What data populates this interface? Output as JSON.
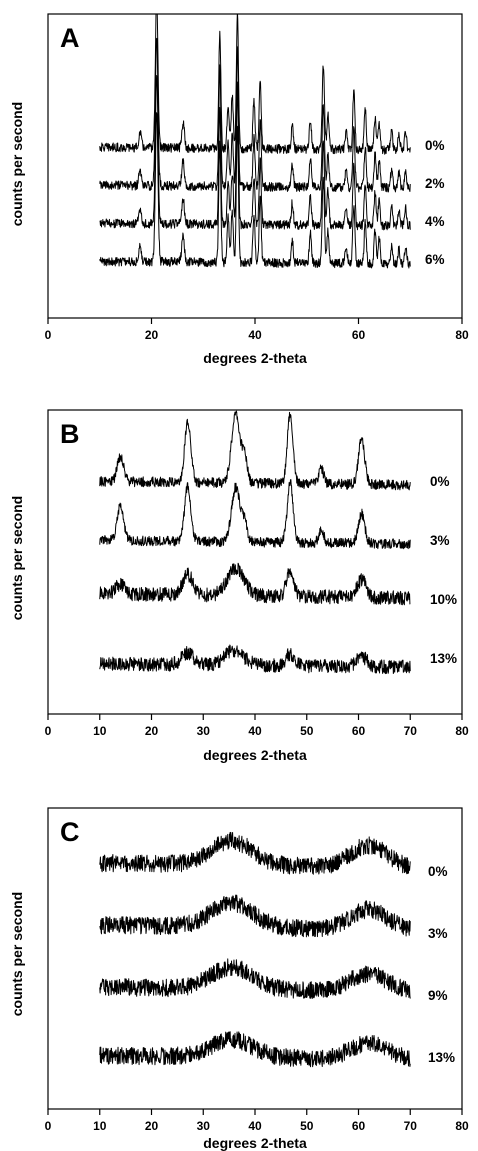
{
  "chart_data": [
    {
      "type": "line",
      "panel_label": "A",
      "xlabel": "degrees 2-theta",
      "ylabel": "counts per second",
      "xlim": [
        0,
        80
      ],
      "x_ticks": [
        "0",
        "20",
        "40",
        "60",
        "80"
      ],
      "x_range_of_data": [
        10,
        70
      ],
      "y_ticks_shown": false,
      "legend_position": "right",
      "series": [
        {
          "name": "0%",
          "baseline": 0.12,
          "noise": 0.03,
          "peaks": [
            [
              17.8,
              0.1,
              0.25
            ],
            [
              21.0,
              1.0,
              0.25
            ],
            [
              26.1,
              0.17,
              0.25
            ],
            [
              33.2,
              0.78,
              0.2
            ],
            [
              34.8,
              0.3,
              0.2
            ],
            [
              35.6,
              0.35,
              0.2
            ],
            [
              36.6,
              0.92,
              0.2
            ],
            [
              39.8,
              0.32,
              0.2
            ],
            [
              41.0,
              0.44,
              0.2
            ],
            [
              47.2,
              0.15,
              0.2
            ],
            [
              50.7,
              0.2,
              0.2
            ],
            [
              53.2,
              0.55,
              0.22
            ],
            [
              54.1,
              0.23,
              0.2
            ],
            [
              57.6,
              0.12,
              0.2
            ],
            [
              59.1,
              0.4,
              0.2
            ],
            [
              61.3,
              0.27,
              0.2
            ],
            [
              63.2,
              0.22,
              0.2
            ],
            [
              64.0,
              0.17,
              0.2
            ],
            [
              66.4,
              0.12,
              0.2
            ],
            [
              67.8,
              0.1,
              0.2
            ],
            [
              69.1,
              0.12,
              0.2
            ]
          ]
        },
        {
          "name": "2%",
          "baseline": 0.12,
          "noise": 0.03,
          "peaks": [
            [
              17.8,
              0.1,
              0.25
            ],
            [
              21.0,
              1.0,
              0.25
            ],
            [
              26.1,
              0.17,
              0.25
            ],
            [
              33.2,
              0.78,
              0.2
            ],
            [
              34.8,
              0.3,
              0.2
            ],
            [
              35.6,
              0.35,
              0.2
            ],
            [
              36.6,
              0.92,
              0.2
            ],
            [
              39.8,
              0.32,
              0.2
            ],
            [
              41.0,
              0.44,
              0.2
            ],
            [
              47.2,
              0.15,
              0.2
            ],
            [
              50.7,
              0.2,
              0.2
            ],
            [
              53.2,
              0.55,
              0.22
            ],
            [
              54.1,
              0.23,
              0.2
            ],
            [
              57.6,
              0.12,
              0.2
            ],
            [
              59.1,
              0.4,
              0.2
            ],
            [
              61.3,
              0.27,
              0.2
            ],
            [
              63.2,
              0.22,
              0.2
            ],
            [
              64.0,
              0.17,
              0.2
            ],
            [
              66.4,
              0.12,
              0.2
            ],
            [
              67.8,
              0.1,
              0.2
            ],
            [
              69.1,
              0.12,
              0.2
            ]
          ]
        },
        {
          "name": "4%",
          "baseline": 0.12,
          "noise": 0.03,
          "peaks": [
            [
              17.8,
              0.1,
              0.25
            ],
            [
              21.0,
              1.0,
              0.25
            ],
            [
              26.1,
              0.17,
              0.25
            ],
            [
              33.2,
              0.78,
              0.2
            ],
            [
              34.8,
              0.3,
              0.2
            ],
            [
              35.6,
              0.35,
              0.2
            ],
            [
              36.6,
              0.92,
              0.2
            ],
            [
              39.8,
              0.32,
              0.2
            ],
            [
              41.0,
              0.44,
              0.2
            ],
            [
              47.2,
              0.15,
              0.2
            ],
            [
              50.7,
              0.2,
              0.2
            ],
            [
              53.2,
              0.55,
              0.22
            ],
            [
              54.1,
              0.23,
              0.2
            ],
            [
              57.6,
              0.12,
              0.2
            ],
            [
              59.1,
              0.4,
              0.2
            ],
            [
              61.3,
              0.27,
              0.2
            ],
            [
              63.2,
              0.22,
              0.2
            ],
            [
              64.0,
              0.17,
              0.2
            ],
            [
              66.4,
              0.12,
              0.2
            ],
            [
              67.8,
              0.1,
              0.2
            ],
            [
              69.1,
              0.12,
              0.2
            ]
          ]
        },
        {
          "name": "6%",
          "baseline": 0.12,
          "noise": 0.03,
          "peaks": [
            [
              17.8,
              0.1,
              0.25
            ],
            [
              21.0,
              1.0,
              0.25
            ],
            [
              26.1,
              0.17,
              0.25
            ],
            [
              33.2,
              0.78,
              0.2
            ],
            [
              34.8,
              0.3,
              0.2
            ],
            [
              35.6,
              0.35,
              0.2
            ],
            [
              36.6,
              0.92,
              0.2
            ],
            [
              39.8,
              0.32,
              0.2
            ],
            [
              41.0,
              0.44,
              0.2
            ],
            [
              47.2,
              0.15,
              0.2
            ],
            [
              50.7,
              0.2,
              0.2
            ],
            [
              53.2,
              0.55,
              0.22
            ],
            [
              54.1,
              0.23,
              0.2
            ],
            [
              57.6,
              0.12,
              0.2
            ],
            [
              59.1,
              0.4,
              0.2
            ],
            [
              61.3,
              0.27,
              0.2
            ],
            [
              63.2,
              0.22,
              0.2
            ],
            [
              64.0,
              0.17,
              0.2
            ],
            [
              66.4,
              0.12,
              0.2
            ],
            [
              67.8,
              0.1,
              0.2
            ],
            [
              69.1,
              0.12,
              0.2
            ]
          ]
        }
      ]
    },
    {
      "type": "line",
      "panel_label": "B",
      "xlabel": "degrees 2-theta",
      "ylabel": "counts per second",
      "xlim": [
        0,
        80
      ],
      "x_ticks": [
        "0",
        "10",
        "20",
        "30",
        "40",
        "50",
        "60",
        "70",
        "80"
      ],
      "x_range_of_data": [
        10,
        70
      ],
      "y_ticks_shown": false,
      "legend_position": "right",
      "series": [
        {
          "name": "0%",
          "baseline": 0.25,
          "noise": 0.05,
          "peaks": [
            [
              14.0,
              0.25,
              0.6
            ],
            [
              27.0,
              0.6,
              0.6
            ],
            [
              36.3,
              0.7,
              0.8
            ],
            [
              38.0,
              0.25,
              0.5
            ],
            [
              46.8,
              0.7,
              0.55
            ],
            [
              52.8,
              0.15,
              0.5
            ],
            [
              60.6,
              0.45,
              0.6
            ]
          ]
        },
        {
          "name": "3%",
          "baseline": 0.25,
          "noise": 0.05,
          "peaks": [
            [
              14.0,
              0.35,
              0.6
            ],
            [
              27.0,
              0.55,
              0.6
            ],
            [
              36.3,
              0.55,
              0.8
            ],
            [
              38.0,
              0.2,
              0.5
            ],
            [
              46.8,
              0.6,
              0.55
            ],
            [
              52.8,
              0.12,
              0.5
            ],
            [
              60.6,
              0.3,
              0.6
            ]
          ]
        },
        {
          "name": "10%",
          "baseline": 0.3,
          "noise": 0.07,
          "peaks": [
            [
              14.0,
              0.1,
              0.8
            ],
            [
              27.0,
              0.2,
              1.0
            ],
            [
              36.3,
              0.28,
              1.6
            ],
            [
              46.8,
              0.26,
              0.7
            ],
            [
              60.6,
              0.18,
              0.8
            ]
          ]
        },
        {
          "name": "13%",
          "baseline": 0.2,
          "noise": 0.07,
          "peaks": [
            [
              27.0,
              0.12,
              1.2
            ],
            [
              36.0,
              0.15,
              1.8
            ],
            [
              46.8,
              0.12,
              0.8
            ],
            [
              60.6,
              0.1,
              1.0
            ]
          ]
        }
      ]
    },
    {
      "type": "line",
      "panel_label": "C",
      "xlabel": "degrees 2-theta",
      "ylabel": "counts per second",
      "xlim": [
        0,
        80
      ],
      "x_ticks": [
        "0",
        "10",
        "20",
        "30",
        "40",
        "50",
        "60",
        "70",
        "80"
      ],
      "x_range_of_data": [
        10,
        70
      ],
      "y_ticks_shown": false,
      "legend_position": "right",
      "series": [
        {
          "name": "0%",
          "baseline": 0.3,
          "noise": 0.08,
          "peaks": [
            [
              35.5,
              0.22,
              4.0
            ],
            [
              62.0,
              0.2,
              3.5
            ]
          ]
        },
        {
          "name": "3%",
          "baseline": 0.3,
          "noise": 0.08,
          "peaks": [
            [
              35.5,
              0.22,
              4.0
            ],
            [
              62.0,
              0.18,
              3.5
            ]
          ]
        },
        {
          "name": "9%",
          "baseline": 0.3,
          "noise": 0.08,
          "peaks": [
            [
              35.5,
              0.2,
              4.0
            ],
            [
              62.0,
              0.16,
              3.5
            ]
          ]
        },
        {
          "name": "13%",
          "baseline": 0.25,
          "noise": 0.08,
          "peaks": [
            [
              35.5,
              0.16,
              4.0
            ],
            [
              62.0,
              0.14,
              3.5
            ]
          ]
        }
      ]
    }
  ]
}
